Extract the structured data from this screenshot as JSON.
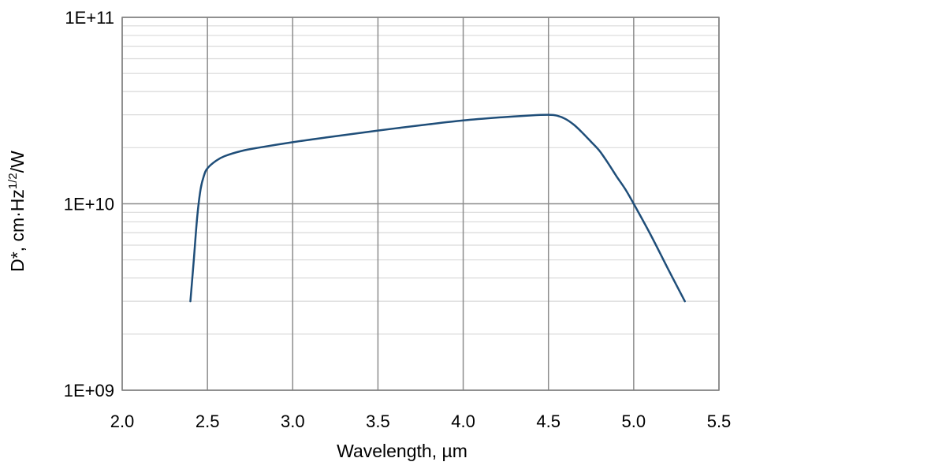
{
  "chart_data": {
    "type": "line",
    "title": "",
    "xlabel": "Wavelength, µm",
    "ylabel": {
      "prefix": "D*, cm·Hz",
      "superscript": "1/2",
      "suffix": "/W"
    },
    "xlim": [
      2.0,
      5.5
    ],
    "ylim": [
      1000000000.0,
      100000000000.0
    ],
    "yscale": "log",
    "grid": true,
    "legend": "none",
    "x_ticks": [
      2.0,
      2.5,
      3.0,
      3.5,
      4.0,
      4.5,
      5.0,
      5.5
    ],
    "x_tick_labels": [
      "2.0",
      "2.5",
      "3.0",
      "3.5",
      "4.0",
      "4.5",
      "5.0",
      "5.5"
    ],
    "y_ticks": [
      1000000000.0,
      10000000000.0,
      100000000000.0
    ],
    "y_tick_labels": [
      "1E+09",
      "1E+10",
      "1E+11"
    ],
    "series": [
      {
        "color": "#1f4e79",
        "x": [
          2.4,
          2.42,
          2.44,
          2.46,
          2.48,
          2.5,
          2.55,
          2.6,
          2.7,
          2.8,
          3.0,
          3.2,
          3.5,
          3.8,
          4.0,
          4.2,
          4.4,
          4.5,
          4.55,
          4.6,
          4.65,
          4.7,
          4.75,
          4.8,
          4.85,
          4.9,
          4.95,
          5.0,
          5.1,
          5.2,
          5.3
        ],
        "y": [
          3000000000.0,
          5000000000.0,
          8500000000.0,
          12000000000.0,
          14200000000.0,
          15500000000.0,
          17000000000.0,
          18000000000.0,
          19200000000.0,
          20000000000.0,
          21400000000.0,
          22700000000.0,
          24700000000.0,
          26700000000.0,
          28000000000.0,
          29000000000.0,
          29800000000.0,
          30000000000.0,
          29700000000.0,
          28500000000.0,
          26500000000.0,
          24000000000.0,
          21500000000.0,
          19200000000.0,
          16500000000.0,
          14000000000.0,
          12000000000.0,
          10000000000.0,
          6800000000.0,
          4500000000.0,
          3000000000.0
        ]
      }
    ]
  }
}
